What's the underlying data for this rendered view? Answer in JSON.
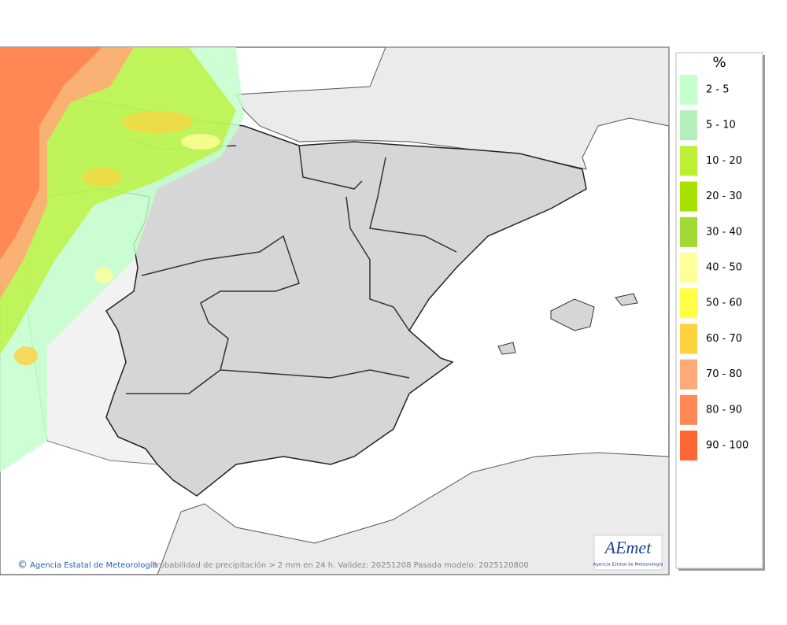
{
  "map": {
    "footer": {
      "credit": "Agencia Estatal de Meteorología",
      "caption": "Probabilidad de precipitación > 2 mm en 24 h. Validez: 20251208 Pasada modelo: 2025120800"
    },
    "logo": {
      "name": "AEmet",
      "subtitle": "Agencia Estatal de Meteorología"
    },
    "legend": {
      "title": "%",
      "items": [
        {
          "label": "2 - 5",
          "color": "#c4ffcc"
        },
        {
          "label": "5 - 10",
          "color": "#b3eebb"
        },
        {
          "label": "10 - 20",
          "color": "#bbf033"
        },
        {
          "label": "20 - 30",
          "color": "#a8e000"
        },
        {
          "label": "30 - 40",
          "color": "#a0d834"
        },
        {
          "label": "40 - 50",
          "color": "#ffff99"
        },
        {
          "label": "50 - 60",
          "color": "#ffff44"
        },
        {
          "label": "60 - 70",
          "color": "#ffd23f"
        },
        {
          "label": "70 - 80",
          "color": "#ffaa77"
        },
        {
          "label": "80 - 90",
          "color": "#ff8855"
        },
        {
          "label": "90 - 100",
          "color": "#ff6633"
        }
      ]
    }
  }
}
